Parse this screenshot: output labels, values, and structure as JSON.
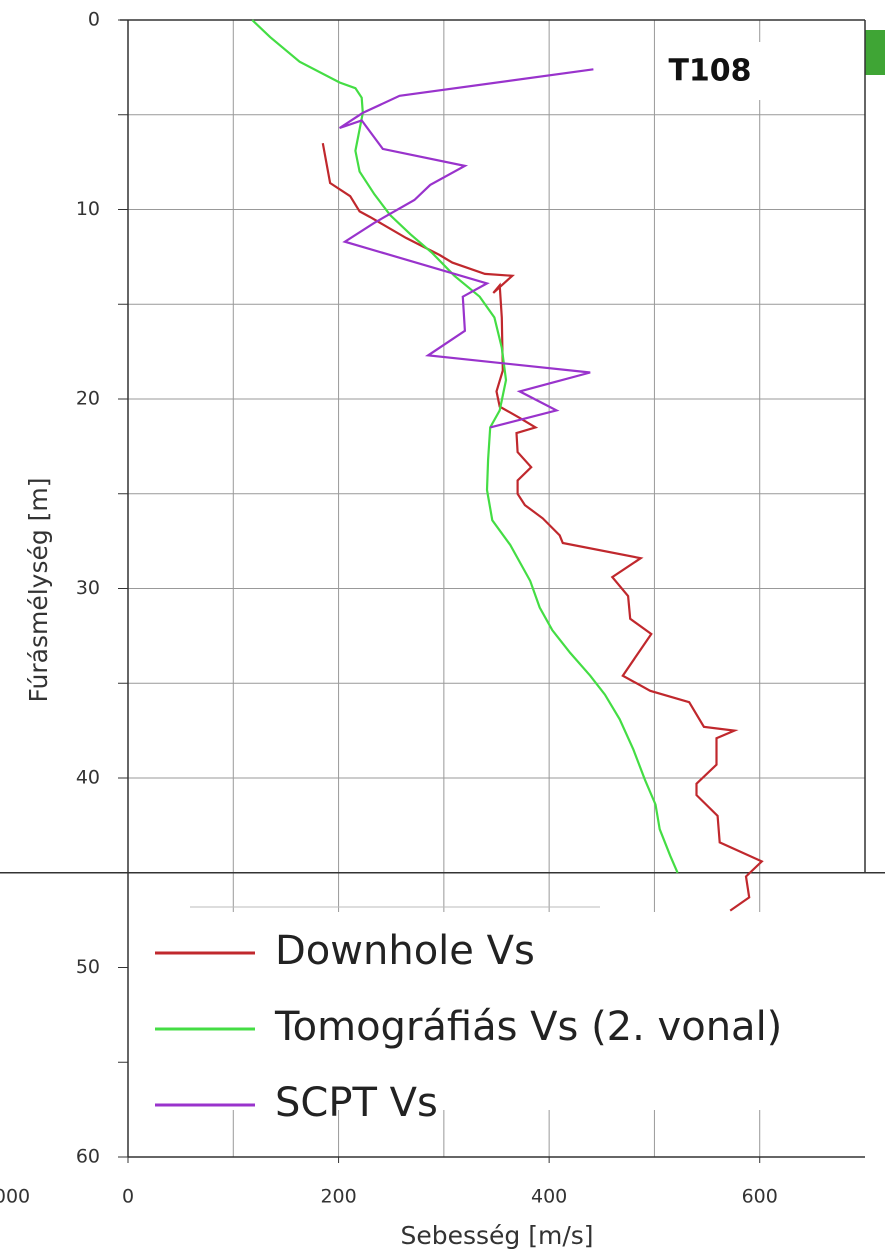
{
  "chart_data": {
    "type": "line",
    "label_box": "T108",
    "left_cut_label": "000",
    "x_label": "Sebesség [m/s]",
    "y_label": "Fúrásmélység [m]",
    "xlim": [
      0,
      700
    ],
    "ylim": [
      0,
      60
    ],
    "y_inverted": true,
    "xticks": [
      0,
      200,
      400,
      600
    ],
    "xgrid": [
      100,
      200,
      300,
      400,
      500,
      600
    ],
    "yticks": [
      0,
      10,
      20,
      30,
      40,
      50,
      60
    ],
    "yminorticks": [
      5,
      15,
      25,
      35,
      45,
      55
    ],
    "ygrid": [
      5,
      10,
      15,
      20,
      25,
      30,
      35,
      40,
      45
    ],
    "series": [
      {
        "name": "Downhole Vs",
        "color": "#c0282d",
        "x": [
          185,
          192,
          211,
          220,
          230,
          264,
          296,
          308,
          339,
          365,
          347,
          353,
          355,
          356,
          350,
          353,
          372,
          387,
          369,
          370,
          383,
          370,
          370,
          377,
          394,
          410,
          413,
          487,
          460,
          475,
          477,
          497,
          470,
          496,
          533,
          547,
          576,
          559,
          559,
          540,
          540,
          560,
          562,
          602,
          587,
          590,
          572
        ],
        "values": [
          6.5,
          8.6,
          9.3,
          10.1,
          10.4,
          11.5,
          12.4,
          12.8,
          13.4,
          13.5,
          14.4,
          14.0,
          15.7,
          18.5,
          19.6,
          20.4,
          21.0,
          21.5,
          21.8,
          22.8,
          23.6,
          24.3,
          25.0,
          25.6,
          26.3,
          27.2,
          27.6,
          28.4,
          29.4,
          30.4,
          31.6,
          32.4,
          34.6,
          35.4,
          36.0,
          37.3,
          37.5,
          37.9,
          39.3,
          40.3,
          40.9,
          42.0,
          43.4,
          44.4,
          45.2,
          46.3,
          47.0
        ]
      },
      {
        "name": "Tomográfiás Vs (2. vonal)",
        "color": "#44dd44",
        "x": [
          118,
          135,
          163,
          201,
          216,
          222,
          223,
          216,
          220,
          234,
          249,
          268,
          289,
          310,
          334,
          348,
          355,
          359,
          353,
          344,
          342,
          341,
          346,
          363,
          382,
          391,
          403,
          420,
          439,
          453,
          467,
          480,
          491,
          501,
          505,
          515,
          522
        ],
        "values": [
          0,
          0.9,
          2.2,
          3.3,
          3.6,
          4.1,
          4.9,
          6.9,
          8.0,
          9.2,
          10.3,
          11.3,
          12.3,
          13.5,
          14.6,
          15.7,
          17.3,
          19.0,
          20.6,
          21.5,
          23.2,
          24.8,
          26.4,
          27.7,
          29.6,
          31.0,
          32.2,
          33.4,
          34.6,
          35.6,
          36.9,
          38.5,
          40.1,
          41.4,
          42.7,
          44.1,
          45.0
        ]
      },
      {
        "name": "SCPT Vs",
        "color": "#9933cc",
        "x": [
          442,
          258,
          223,
          201,
          222,
          242,
          320,
          287,
          272,
          234,
          206,
          341,
          318,
          320,
          285,
          439,
          372,
          407,
          344
        ],
        "values": [
          2.6,
          4.0,
          4.9,
          5.7,
          5.3,
          6.8,
          7.7,
          8.7,
          9.5,
          10.7,
          11.7,
          13.9,
          14.6,
          16.4,
          17.7,
          18.6,
          19.6,
          20.6,
          21.5
        ]
      }
    ]
  }
}
